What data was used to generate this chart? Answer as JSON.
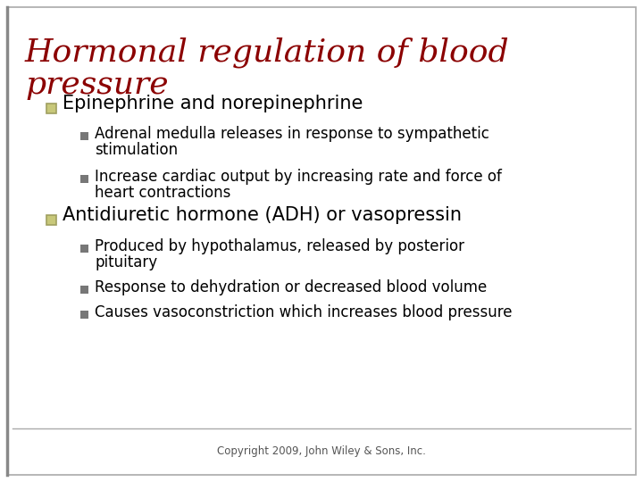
{
  "title_line1": "Hormonal regulation of blood",
  "title_line2": "pressure",
  "title_color": "#8B0000",
  "background_color": "#FFFFFF",
  "border_color": "#aaaaaa",
  "left_bar_color": "#888888",
  "bullet1_text": "Epinephrine and norepinephrine",
  "bullet_text_color": "#000000",
  "bullet_marker_fill": "#c8c87a",
  "bullet_marker_edge": "#a0a060",
  "sub_bullets_1_line1": [
    "Adrenal medulla releases in response to sympathetic",
    "Increase cardiac output by increasing rate and force of"
  ],
  "sub_bullets_1_line2": [
    "stimulation",
    "heart contractions"
  ],
  "bullet2_text": "Antidiuretic hormone (ADH) or vasopressin",
  "sub_bullets_2_line1": [
    "Produced by hypothalamus, released by posterior",
    "Response to dehydration or decreased blood volume",
    "Causes vasoconstriction which increases blood pressure"
  ],
  "sub_bullets_2_line2": [
    "pituitary",
    "",
    ""
  ],
  "sub_bullet_marker_color": "#777777",
  "copyright": "Copyright 2009, John Wiley & Sons, Inc.",
  "copyright_color": "#555555",
  "footer_line_color": "#aaaaaa"
}
